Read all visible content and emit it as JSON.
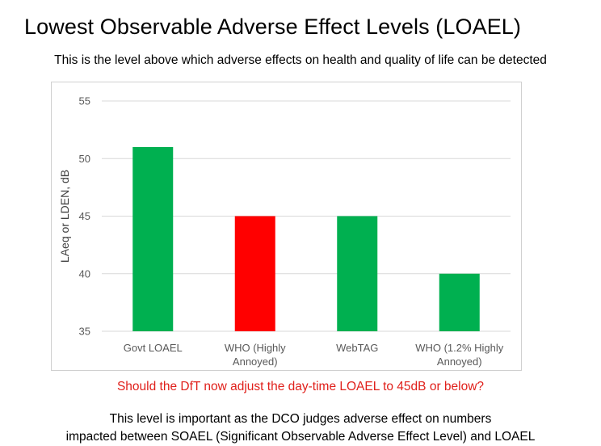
{
  "slide": {
    "title": "Lowest Observable Adverse Effect Levels (LOAEL)",
    "subtitle": "This is the level above which adverse effects on health and quality of life can be detected",
    "question": "Should the DfT now adjust the day-time LOAEL to 45dB or below?",
    "note_line1": "This level is important as the DCO judges adverse effect on numbers",
    "note_line2": "impacted between SOAEL (Significant Observable Adverse Effect Level) and LOAEL"
  },
  "chart_data": {
    "type": "bar",
    "title": "",
    "xlabel": "",
    "ylabel": "LAeq or LDEN, dB",
    "ylim": [
      35,
      55
    ],
    "yticks": [
      35,
      40,
      45,
      50,
      55
    ],
    "grid": true,
    "categories": [
      [
        "Govt LOAEL"
      ],
      [
        "WHO (Highly",
        "Annoyed)"
      ],
      [
        "WebTAG"
      ],
      [
        "WHO  (1.2% Highly",
        "Annoyed)"
      ]
    ],
    "values": [
      51,
      45,
      45,
      40
    ],
    "colors": [
      "#00b050",
      "#ff0000",
      "#00b050",
      "#00b050"
    ]
  },
  "colors": {
    "accent_green": "#00b050",
    "accent_red": "#ff0000",
    "question_text": "#e0201b",
    "gridline": "#d9d9d9"
  }
}
